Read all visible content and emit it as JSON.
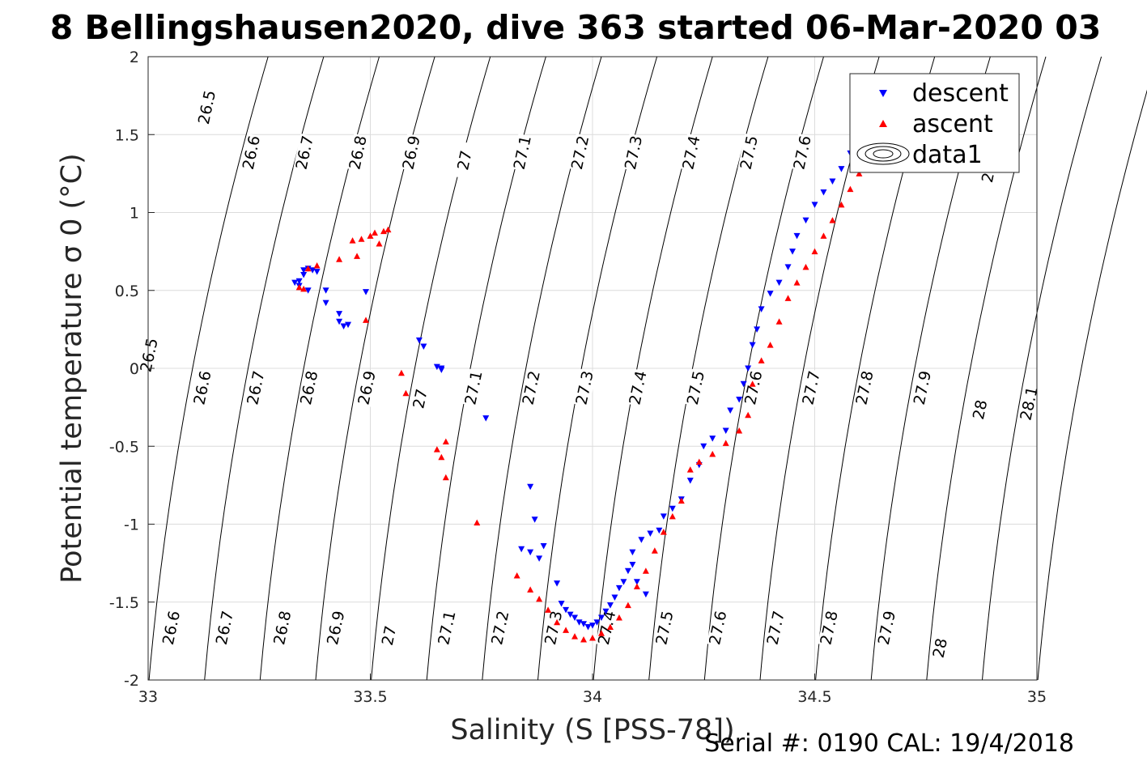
{
  "title": "8 Bellingshausen2020, dive 363 started 06-Mar-2020 03",
  "footer": "Serial #: 0190  CAL: 19/4/2018",
  "chart_data": {
    "type": "scatter",
    "title": "8 Bellingshausen2020, dive 363 started 06-Mar-2020 03",
    "xlabel": "Salinity (S [PSS-78])",
    "ylabel": "Potential temperature σ 0 (°C)",
    "xlim": [
      33,
      35
    ],
    "ylim": [
      -2,
      2
    ],
    "xticks": [
      33,
      33.5,
      34,
      34.5,
      35
    ],
    "xtick_labels": [
      "33",
      "33.5",
      "34",
      "34.5",
      "35"
    ],
    "yticks": [
      -2,
      -1.5,
      -1,
      -0.5,
      0,
      0.5,
      1,
      1.5,
      2
    ],
    "ytick_labels": [
      "-2",
      "-1.5",
      "-1",
      "-0.5",
      "0",
      "0.5",
      "1",
      "1.5",
      "2"
    ],
    "grid": true,
    "legend_position": "top-right",
    "density_contours": {
      "levels": [
        26.5,
        26.6,
        26.7,
        26.8,
        26.9,
        27,
        27.1,
        27.2,
        27.3,
        27.4,
        27.5,
        27.6,
        27.7,
        27.8,
        27.9,
        28,
        28.1
      ],
      "labels_top": [
        [
          "26.5",
          33.14,
          1.67
        ],
        [
          "26.6",
          33.24,
          1.38
        ],
        [
          "26.7",
          33.36,
          1.38
        ],
        [
          "26.8",
          33.48,
          1.38
        ],
        [
          "26.9",
          33.6,
          1.38
        ],
        [
          "27",
          33.72,
          1.33
        ],
        [
          "27.1",
          33.85,
          1.38
        ],
        [
          "27.2",
          33.98,
          1.38
        ],
        [
          "27.3",
          34.1,
          1.38
        ],
        [
          "27.4",
          34.23,
          1.38
        ],
        [
          "27.5",
          34.36,
          1.38
        ],
        [
          "27.6",
          34.48,
          1.38
        ],
        [
          "28",
          34.9,
          1.25
        ]
      ],
      "labels_mid": [
        [
          "26.5",
          33.01,
          0.08
        ],
        [
          "26.6",
          33.13,
          -0.13
        ],
        [
          "26.7",
          33.25,
          -0.13
        ],
        [
          "26.8",
          33.37,
          -0.13
        ],
        [
          "26.9",
          33.5,
          -0.13
        ],
        [
          "27",
          33.62,
          -0.2
        ],
        [
          "27.1",
          33.74,
          -0.13
        ],
        [
          "27.2",
          33.87,
          -0.13
        ],
        [
          "27.3",
          33.99,
          -0.13
        ],
        [
          "27.4",
          34.11,
          -0.13
        ],
        [
          "27.5",
          34.24,
          -0.13
        ],
        [
          "27.6",
          34.37,
          -0.13
        ],
        [
          "27.7",
          34.5,
          -0.13
        ],
        [
          "27.8",
          34.62,
          -0.13
        ],
        [
          "27.9",
          34.75,
          -0.13
        ],
        [
          "28",
          34.88,
          -0.27
        ],
        [
          "28.1",
          34.99,
          -0.23
        ]
      ],
      "labels_bottom": [
        [
          "26.6",
          33.06,
          -1.67
        ],
        [
          "26.7",
          33.18,
          -1.67
        ],
        [
          "26.8",
          33.31,
          -1.67
        ],
        [
          "26.9",
          33.43,
          -1.67
        ],
        [
          "27",
          33.55,
          -1.72
        ],
        [
          "27.1",
          33.68,
          -1.67
        ],
        [
          "27.2",
          33.8,
          -1.67
        ],
        [
          "27.3",
          33.92,
          -1.67
        ],
        [
          "27.4",
          34.04,
          -1.67
        ],
        [
          "27.5",
          34.17,
          -1.67
        ],
        [
          "27.6",
          34.29,
          -1.67
        ],
        [
          "27.7",
          34.42,
          -1.67
        ],
        [
          "27.8",
          34.54,
          -1.67
        ],
        [
          "27.9",
          34.67,
          -1.67
        ],
        [
          "28",
          34.79,
          -1.8
        ]
      ]
    },
    "series": [
      {
        "name": "descent",
        "color": "#0000ff",
        "marker": "triangle-down",
        "points": [
          [
            33.33,
            0.55
          ],
          [
            33.34,
            0.56
          ],
          [
            33.35,
            0.6
          ],
          [
            33.35,
            0.63
          ],
          [
            33.36,
            0.64
          ],
          [
            33.37,
            0.63
          ],
          [
            33.38,
            0.62
          ],
          [
            33.36,
            0.5
          ],
          [
            33.34,
            0.53
          ],
          [
            33.4,
            0.5
          ],
          [
            33.4,
            0.42
          ],
          [
            33.43,
            0.35
          ],
          [
            33.43,
            0.3
          ],
          [
            33.44,
            0.27
          ],
          [
            33.45,
            0.28
          ],
          [
            33.49,
            0.49
          ],
          [
            33.61,
            0.18
          ],
          [
            33.62,
            0.14
          ],
          [
            33.65,
            0.01
          ],
          [
            33.66,
            -0.01
          ],
          [
            33.66,
            0.0
          ],
          [
            33.76,
            -0.32
          ],
          [
            33.86,
            -0.76
          ],
          [
            33.87,
            -0.97
          ],
          [
            33.89,
            -1.14
          ],
          [
            33.84,
            -1.16
          ],
          [
            33.86,
            -1.18
          ],
          [
            33.88,
            -1.22
          ],
          [
            33.92,
            -1.38
          ],
          [
            33.93,
            -1.51
          ],
          [
            33.94,
            -1.55
          ],
          [
            33.95,
            -1.58
          ],
          [
            33.96,
            -1.6
          ],
          [
            33.97,
            -1.63
          ],
          [
            33.98,
            -1.64
          ],
          [
            33.99,
            -1.66
          ],
          [
            34.0,
            -1.65
          ],
          [
            34.01,
            -1.63
          ],
          [
            34.02,
            -1.6
          ],
          [
            34.03,
            -1.56
          ],
          [
            34.04,
            -1.52
          ],
          [
            34.05,
            -1.47
          ],
          [
            34.06,
            -1.41
          ],
          [
            34.07,
            -1.37
          ],
          [
            34.08,
            -1.3
          ],
          [
            34.09,
            -1.26
          ],
          [
            34.1,
            -1.37
          ],
          [
            34.12,
            -1.45
          ],
          [
            34.09,
            -1.18
          ],
          [
            34.11,
            -1.1
          ],
          [
            34.13,
            -1.06
          ],
          [
            34.15,
            -1.04
          ],
          [
            34.16,
            -0.95
          ],
          [
            34.18,
            -0.9
          ],
          [
            34.2,
            -0.84
          ],
          [
            34.22,
            -0.72
          ],
          [
            34.24,
            -0.62
          ],
          [
            34.25,
            -0.5
          ],
          [
            34.27,
            -0.45
          ],
          [
            34.3,
            -0.4
          ],
          [
            34.31,
            -0.27
          ],
          [
            34.33,
            -0.2
          ],
          [
            34.34,
            -0.1
          ],
          [
            34.35,
            0.0
          ],
          [
            34.36,
            0.15
          ],
          [
            34.37,
            0.25
          ],
          [
            34.38,
            0.38
          ],
          [
            34.4,
            0.48
          ],
          [
            34.42,
            0.55
          ],
          [
            34.44,
            0.65
          ],
          [
            34.45,
            0.75
          ],
          [
            34.46,
            0.85
          ],
          [
            34.48,
            0.95
          ],
          [
            34.5,
            1.05
          ],
          [
            34.52,
            1.13
          ],
          [
            34.54,
            1.2
          ],
          [
            34.56,
            1.28
          ],
          [
            34.58,
            1.38
          ],
          [
            34.6,
            1.47
          ],
          [
            34.62,
            1.56
          ],
          [
            34.63,
            1.6
          ]
        ]
      },
      {
        "name": "ascent",
        "color": "#ff0000",
        "marker": "triangle-up",
        "points": [
          [
            33.34,
            0.52
          ],
          [
            33.35,
            0.51
          ],
          [
            33.36,
            0.64
          ],
          [
            33.38,
            0.66
          ],
          [
            33.43,
            0.7
          ],
          [
            33.46,
            0.82
          ],
          [
            33.48,
            0.83
          ],
          [
            33.5,
            0.85
          ],
          [
            33.51,
            0.87
          ],
          [
            33.53,
            0.88
          ],
          [
            33.54,
            0.89
          ],
          [
            33.47,
            0.72
          ],
          [
            33.52,
            0.8
          ],
          [
            33.49,
            0.31
          ],
          [
            33.57,
            -0.03
          ],
          [
            33.58,
            -0.16
          ],
          [
            33.65,
            -0.52
          ],
          [
            33.66,
            -0.57
          ],
          [
            33.67,
            -0.47
          ],
          [
            33.67,
            -0.7
          ],
          [
            33.74,
            -0.99
          ],
          [
            33.83,
            -1.33
          ],
          [
            33.86,
            -1.42
          ],
          [
            33.88,
            -1.48
          ],
          [
            33.9,
            -1.55
          ],
          [
            33.92,
            -1.63
          ],
          [
            33.94,
            -1.68
          ],
          [
            33.96,
            -1.72
          ],
          [
            33.98,
            -1.74
          ],
          [
            34.0,
            -1.73
          ],
          [
            34.02,
            -1.7
          ],
          [
            34.04,
            -1.66
          ],
          [
            34.06,
            -1.6
          ],
          [
            34.08,
            -1.52
          ],
          [
            34.1,
            -1.4
          ],
          [
            34.12,
            -1.3
          ],
          [
            34.14,
            -1.17
          ],
          [
            34.16,
            -1.05
          ],
          [
            34.18,
            -0.95
          ],
          [
            34.2,
            -0.85
          ],
          [
            34.22,
            -0.65
          ],
          [
            34.24,
            -0.6
          ],
          [
            34.27,
            -0.55
          ],
          [
            34.3,
            -0.48
          ],
          [
            34.33,
            -0.4
          ],
          [
            34.35,
            -0.3
          ],
          [
            34.36,
            -0.1
          ],
          [
            34.38,
            0.05
          ],
          [
            34.4,
            0.15
          ],
          [
            34.42,
            0.3
          ],
          [
            34.44,
            0.45
          ],
          [
            34.46,
            0.55
          ],
          [
            34.48,
            0.65
          ],
          [
            34.5,
            0.75
          ],
          [
            34.52,
            0.85
          ],
          [
            34.54,
            0.95
          ],
          [
            34.56,
            1.05
          ],
          [
            34.58,
            1.15
          ],
          [
            34.6,
            1.25
          ],
          [
            34.62,
            1.35
          ],
          [
            34.64,
            1.45
          ],
          [
            34.66,
            1.52
          ]
        ]
      },
      {
        "name": "data1",
        "marker": "contour-ellipses",
        "points": []
      }
    ]
  }
}
